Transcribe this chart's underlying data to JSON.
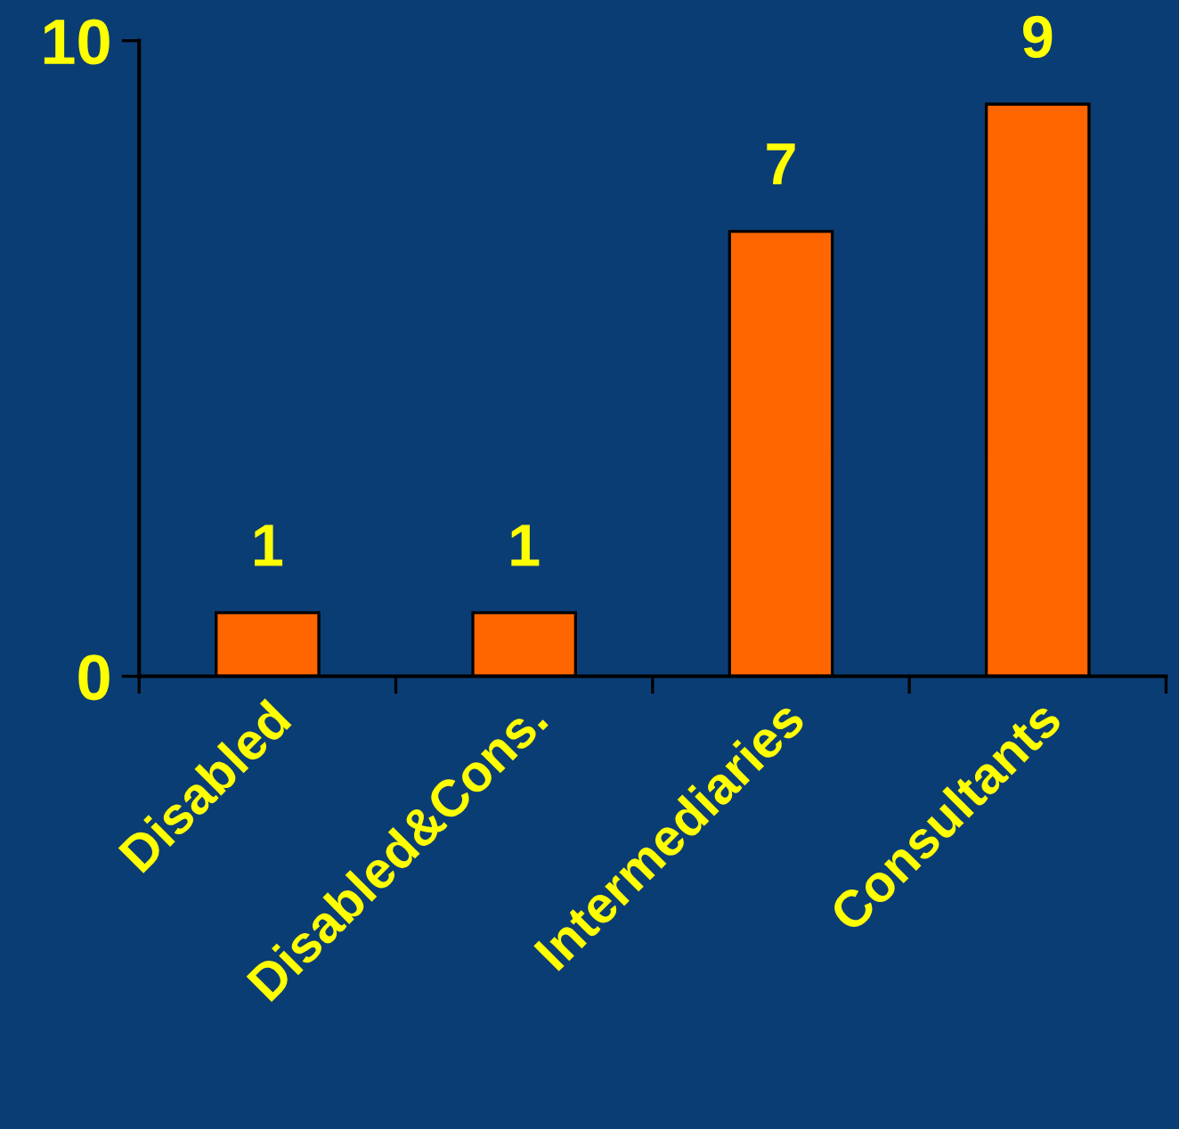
{
  "chart_data": {
    "type": "bar",
    "categories": [
      "Disabled",
      "Disabled&Cons.",
      "Intermediaries",
      "Consultants"
    ],
    "values": [
      1,
      1,
      7,
      9
    ],
    "color": "#ff6600",
    "ylim": [
      0,
      10
    ],
    "yticks": [
      0,
      10
    ],
    "data_labels": true
  }
}
